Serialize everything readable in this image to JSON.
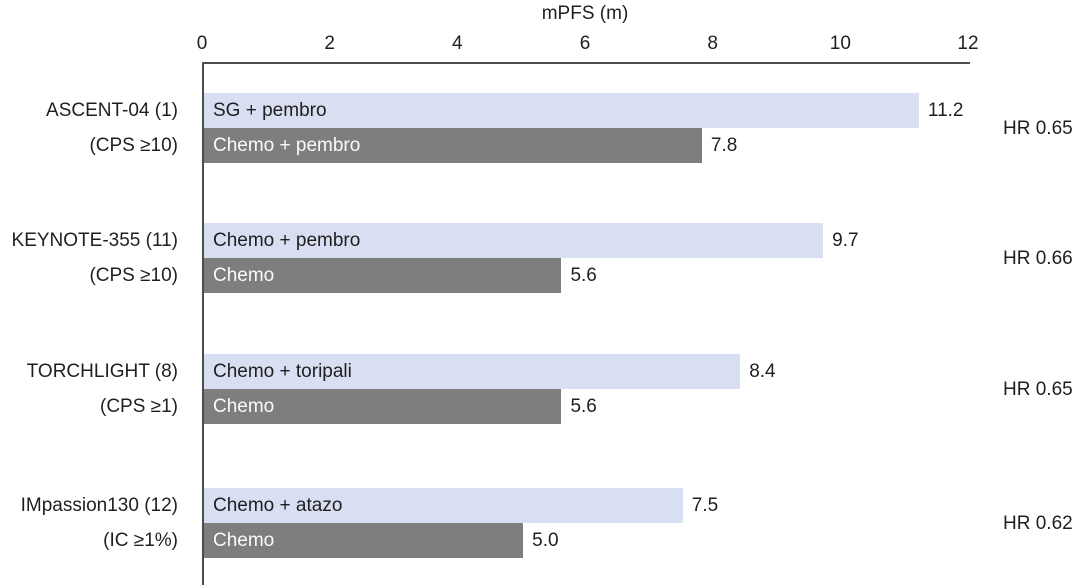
{
  "chart_data": {
    "type": "bar",
    "orientation": "horizontal",
    "title": "mPFS (m)",
    "xlabel": "mPFS (m)",
    "xlim": [
      0,
      12
    ],
    "xticks": [
      "0",
      "2",
      "4",
      "6",
      "8",
      "10",
      "12"
    ],
    "axis_position": "top",
    "grid": false,
    "legend": "none",
    "colors": {
      "experimental_bar": "#d9dff2",
      "control_bar": "#7e7e7e",
      "text": "#1f1f1f",
      "label_on_control": "#fafafa",
      "axis": "#4d4d4d"
    },
    "groups": [
      {
        "trial": "ASCENT-04 (1)",
        "subgroup": "(CPS ≥10)",
        "hr": "HR 0.65",
        "bars": [
          {
            "label": "SG + pembro",
            "value": 11.2,
            "display": "11.2",
            "role": "experimental"
          },
          {
            "label": "Chemo + pembro",
            "value": 7.8,
            "display": "7.8",
            "role": "control"
          }
        ]
      },
      {
        "trial": "KEYNOTE-355 (11)",
        "subgroup": "(CPS ≥10)",
        "hr": "HR 0.66",
        "bars": [
          {
            "label": "Chemo + pembro",
            "value": 9.7,
            "display": "9.7",
            "role": "experimental"
          },
          {
            "label": "Chemo",
            "value": 5.6,
            "display": "5.6",
            "role": "control"
          }
        ]
      },
      {
        "trial": "TORCHLIGHT (8)",
        "subgroup": "(CPS ≥1)",
        "hr": "HR 0.65",
        "bars": [
          {
            "label": "Chemo + toripali",
            "value": 8.4,
            "display": "8.4",
            "role": "experimental"
          },
          {
            "label": "Chemo",
            "value": 5.6,
            "display": "5.6",
            "role": "control"
          }
        ]
      },
      {
        "trial": "IMpassion130 (12)",
        "subgroup": "(IC ≥1%)",
        "hr": "HR 0.62",
        "bars": [
          {
            "label": "Chemo + atazo",
            "value": 7.5,
            "display": "7.5",
            "role": "experimental"
          },
          {
            "label": "Chemo",
            "value": 5.0,
            "display": "5.0",
            "role": "control"
          }
        ]
      }
    ]
  }
}
